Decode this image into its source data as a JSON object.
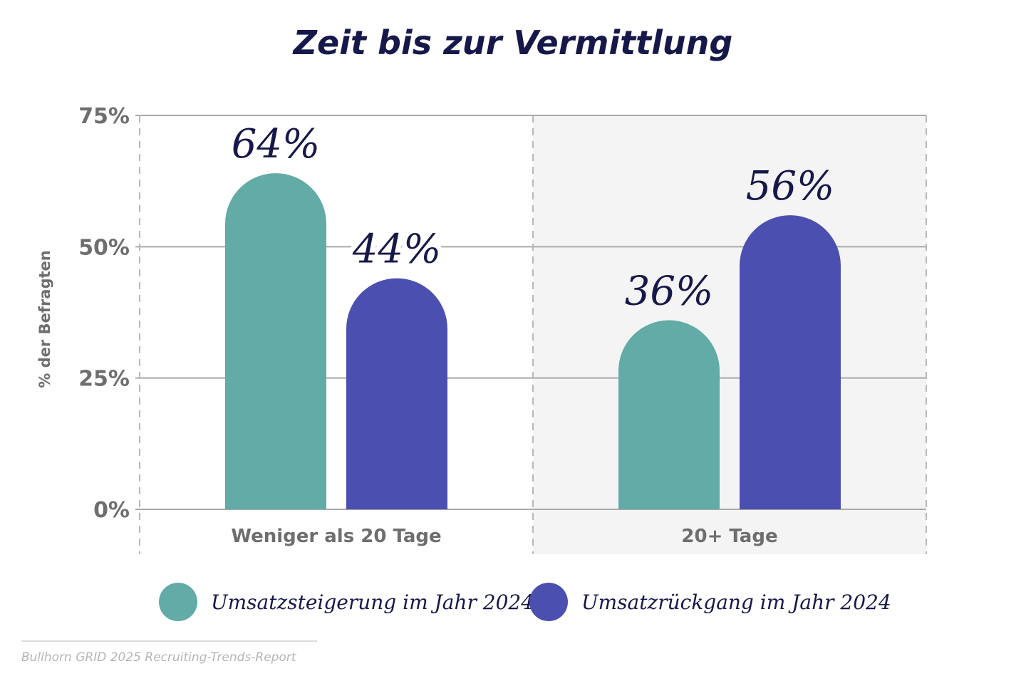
{
  "chart_data": {
    "type": "bar",
    "title": "Zeit bis zur Vermittlung",
    "ylabel": "% der Befragten",
    "xlabel": "",
    "ylim": [
      0,
      75
    ],
    "yticks": [
      0,
      25,
      50,
      75
    ],
    "ytick_labels": [
      "0%",
      "25%",
      "50%",
      "75%"
    ],
    "categories": [
      "Weniger als 20 Tage",
      "20+ Tage"
    ],
    "series": [
      {
        "name": "Umsatzsteigerung im Jahr 2024",
        "color": "#62aba7",
        "values": [
          64,
          36
        ],
        "labels": [
          "64%",
          "36%"
        ]
      },
      {
        "name": "Umsatzrückgang im Jahr 2024",
        "color": "#4b50b0",
        "values": [
          44,
          56
        ],
        "labels": [
          "44%",
          "56%"
        ]
      }
    ],
    "grid": true,
    "highlight_category": "20+ Tage",
    "legend_position": "bottom"
  },
  "source": "Bullhorn GRID 2025 Recruiting-Trends-Report"
}
